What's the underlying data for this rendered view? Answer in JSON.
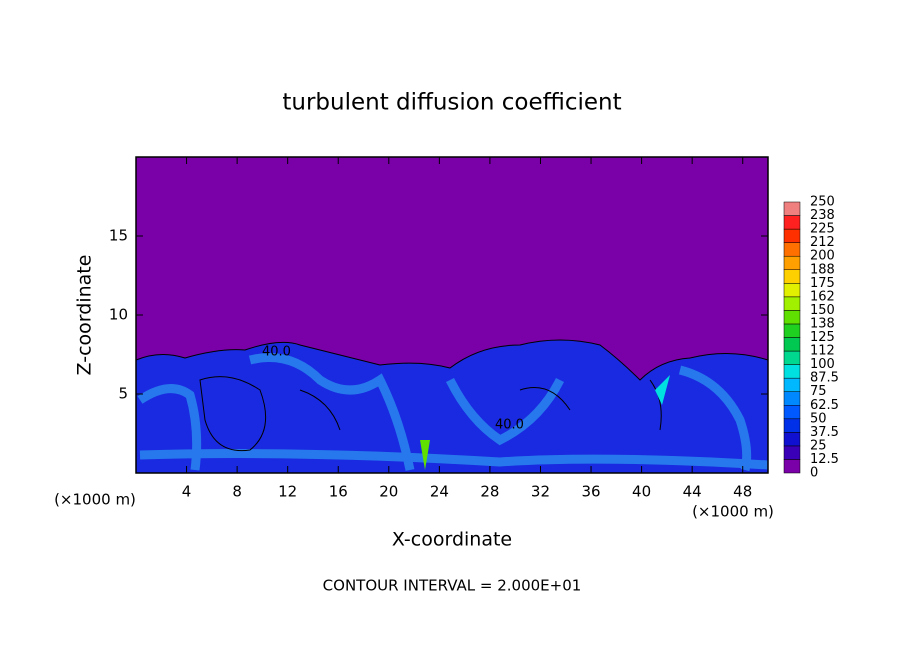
{
  "chart_data": {
    "type": "contour",
    "title": "turbulent diffusion coefficient",
    "x_label": "X-coordinate",
    "y_label": "Z-coordinate",
    "x_unit": "(×1000 m)",
    "xlim": [
      0,
      50
    ],
    "xticks": [
      4,
      8,
      12,
      16,
      20,
      24,
      28,
      32,
      36,
      40,
      44,
      48
    ],
    "ylim": [
      0,
      20
    ],
    "yticks": [
      5,
      10,
      15
    ],
    "contour_labels": [
      "40.0",
      "40.0"
    ],
    "annotation": "CONTOUR INTERVAL = 2.000E+01",
    "colorbar": {
      "levels": [
        0,
        12.5,
        25,
        37.5,
        50,
        62.5,
        75,
        87.5,
        100,
        112,
        125,
        138,
        150,
        162,
        175,
        188,
        200,
        212,
        225,
        238,
        250
      ],
      "colors": [
        "#7a00a8",
        "#3a00b8",
        "#1010d0",
        "#0030e8",
        "#0058ff",
        "#0088ff",
        "#00b8ff",
        "#00e0e0",
        "#00d890",
        "#00c850",
        "#20d020",
        "#60e000",
        "#a0f000",
        "#e0f000",
        "#ffd000",
        "#ffa000",
        "#ff7000",
        "#ff3000",
        "#ff2020",
        "#f08080"
      ]
    }
  }
}
